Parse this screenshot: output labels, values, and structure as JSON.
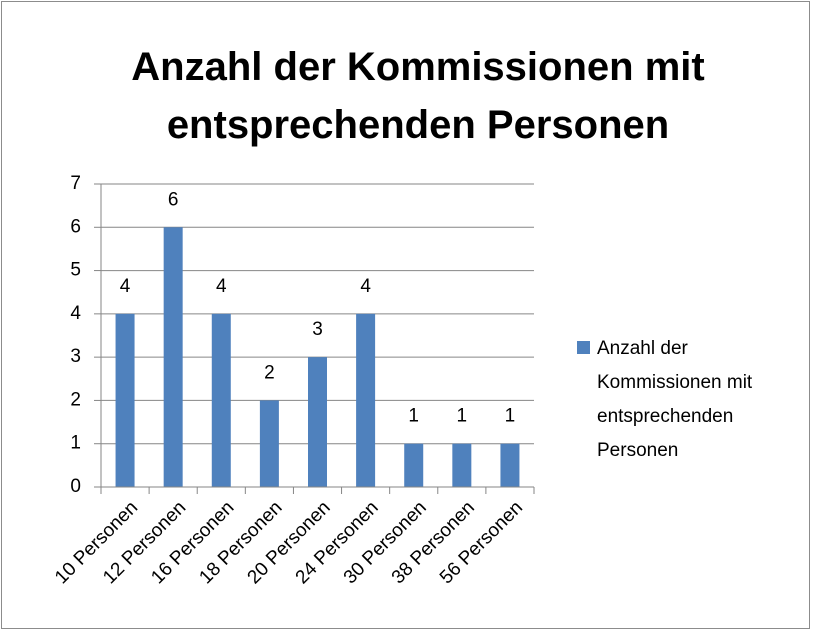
{
  "chart_data": {
    "type": "bar",
    "title": "Anzahl der Kommissionen mit entsprechenden Personen",
    "categories": [
      "10 Personen",
      "12 Personen",
      "16 Personen",
      "18 Personen",
      "20 Personen",
      "24 Personen",
      "30 Personen",
      "38 Personen",
      "56 Personen"
    ],
    "series": [
      {
        "name": "Anzahl der Kommissionen mit entsprechenden Personen",
        "color": "#4f81bd",
        "values": [
          4,
          6,
          4,
          2,
          3,
          4,
          1,
          1,
          1
        ]
      }
    ],
    "ylim": [
      0,
      7
    ],
    "yticks": [
      0,
      1,
      2,
      3,
      4,
      5,
      6,
      7
    ],
    "grid": true,
    "legend": "right"
  }
}
